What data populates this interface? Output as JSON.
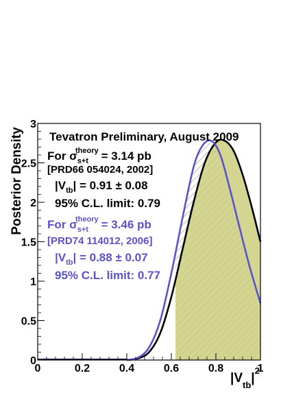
{
  "chart_data": {
    "type": "line",
    "title": "Tevatron Preliminary, August 2009",
    "xlabel": "|V_tb|^2",
    "ylabel": "Posterior Density",
    "xlim": [
      0,
      1
    ],
    "ylim": [
      0,
      3
    ],
    "x_ticks": [
      "0",
      "0.2",
      "0.4",
      "0.6",
      "0.8",
      "1"
    ],
    "y_ticks": [
      "0",
      "0.5",
      "1",
      "1.5",
      "2",
      "2.5",
      "3"
    ],
    "grid": false,
    "series": [
      {
        "color": "#000000",
        "fill": "#cccc7a",
        "shaded_from": 0.62,
        "x": [
          0.4,
          0.45,
          0.5,
          0.55,
          0.6,
          0.65,
          0.7,
          0.75,
          0.8,
          0.84,
          0.88,
          0.92,
          0.96,
          1.0
        ],
        "y": [
          0.0,
          0.02,
          0.1,
          0.34,
          0.8,
          1.4,
          2.0,
          2.5,
          2.76,
          2.78,
          2.65,
          2.35,
          1.95,
          1.5
        ]
      },
      {
        "color": "#5b52cc",
        "hatch": true,
        "shaded_from": 0.62,
        "x": [
          0.4,
          0.45,
          0.5,
          0.55,
          0.6,
          0.65,
          0.7,
          0.74,
          0.78,
          0.82,
          0.86,
          0.9,
          0.95,
          1.0
        ],
        "y": [
          0.0,
          0.03,
          0.16,
          0.5,
          1.1,
          1.8,
          2.45,
          2.72,
          2.78,
          2.6,
          2.2,
          1.75,
          1.2,
          0.72
        ]
      }
    ],
    "annotations": {
      "block1": {
        "for": "For σ",
        "sub": "s+t",
        "sup": "theory",
        "value": "= 3.14 pb",
        "ref": "[PRD66 054024, 2002]",
        "vtb_pre": "|V",
        "vtb_sub": "tb",
        "vtb_val": "| = 0.91 ± 0.08",
        "limit": "95% C.L. limit: 0.79",
        "color": "#000000"
      },
      "block2": {
        "for": "For σ",
        "sub": "s+t",
        "sup": "theory",
        "value": "= 3.46 pb",
        "ref": "[PRD74 114012, 2006]",
        "vtb_pre": "|V",
        "vtb_sub": "tb",
        "vtb_val": "| = 0.88 ± 0.07",
        "limit": "95% C.L. limit: 0.77",
        "color": "#5b52cc"
      }
    },
    "xlabel_parts": {
      "pre": "|V",
      "sub": "tb",
      "post": "|",
      "sup": "2"
    }
  }
}
